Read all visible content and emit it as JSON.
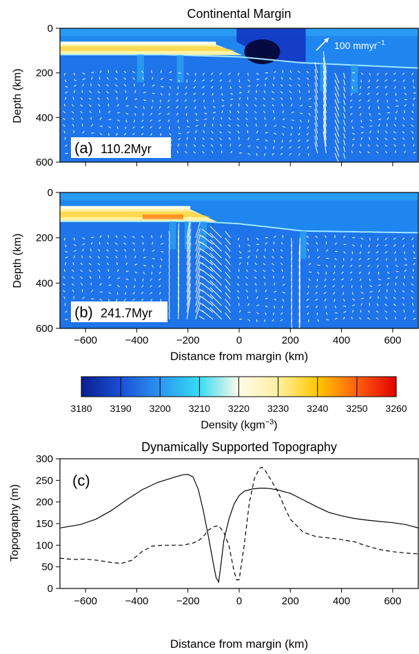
{
  "figure": {
    "top_title": "Continental Margin",
    "bottom_title": "Dynamically Supported Topography"
  },
  "chart_data": [
    {
      "type": "heatmap",
      "panel": "(a)",
      "time_label": "110.2Myr",
      "ylabel": "Depth (km)",
      "xlim": [
        -700,
        700
      ],
      "ylim": [
        600,
        0
      ],
      "y_ticks": [
        0,
        200,
        400,
        600
      ],
      "velocity_scale_label": "100 mmyr",
      "velocity_scale_sup": "−1",
      "lithosphere_base_km": [
        [
          -700,
          118
        ],
        [
          -300,
          118
        ],
        [
          0,
          128
        ],
        [
          250,
          155
        ],
        [
          700,
          178
        ]
      ],
      "craton": {
        "x_range": [
          -700,
          -10
        ],
        "top_km": 60,
        "base_km": 120
      },
      "low_density_anomaly": {
        "x_range": [
          0,
          250
        ],
        "depth_range": [
          0,
          155
        ]
      }
    },
    {
      "type": "heatmap",
      "panel": "(b)",
      "time_label": "241.7Myr",
      "ylabel": "Depth (km)",
      "xlabel": "Distance from margin (km)",
      "xlim": [
        -700,
        700
      ],
      "ylim": [
        600,
        0
      ],
      "x_ticks": [
        -600,
        -400,
        -200,
        0,
        200,
        400,
        600
      ],
      "y_ticks": [
        0,
        200,
        400,
        600
      ],
      "lithosphere_base_km": [
        [
          -700,
          128
        ],
        [
          -150,
          128
        ],
        [
          0,
          138
        ],
        [
          250,
          170
        ],
        [
          700,
          178
        ]
      ],
      "craton": {
        "x_range": [
          -700,
          -110
        ],
        "top_km": 60,
        "base_km": 128
      }
    },
    {
      "type": "colorbar",
      "label": "Density (kgm",
      "label_sup": "−3",
      "label_close": ")",
      "ticks": [
        3180,
        3190,
        3200,
        3210,
        3220,
        3230,
        3240,
        3250,
        3260
      ],
      "colors": [
        "#0c1e8e",
        "#1a4fd6",
        "#2c95f0",
        "#37dcf4",
        "#fffbe8",
        "#fff0a0",
        "#ffc800",
        "#ff6010",
        "#e00000"
      ]
    },
    {
      "type": "line",
      "panel": "(c)",
      "xlabel": "Distance from margin (km)",
      "ylabel": "Topography (m)",
      "xlim": [
        -700,
        700
      ],
      "ylim": [
        0,
        300
      ],
      "x_ticks": [
        -600,
        -400,
        -200,
        0,
        200,
        400,
        600
      ],
      "y_ticks": [
        0,
        50,
        100,
        150,
        200,
        250,
        300
      ],
      "series": [
        {
          "style": "solid",
          "x": [
            -700,
            -620,
            -560,
            -500,
            -440,
            -380,
            -320,
            -260,
            -220,
            -200,
            -180,
            -160,
            -140,
            -120,
            -100,
            -90,
            -80,
            -70,
            -60,
            -40,
            -20,
            0,
            20,
            50,
            80,
            100,
            120,
            150,
            200,
            250,
            300,
            350,
            400,
            450,
            500,
            550,
            600,
            650,
            700
          ],
          "y": [
            140,
            148,
            160,
            180,
            205,
            228,
            245,
            256,
            263,
            264,
            258,
            230,
            180,
            120,
            55,
            25,
            15,
            60,
            110,
            160,
            195,
            215,
            225,
            230,
            232,
            232,
            231,
            228,
            220,
            205,
            190,
            176,
            168,
            162,
            158,
            155,
            152,
            148,
            140
          ]
        },
        {
          "style": "dashed",
          "x": [
            -700,
            -650,
            -600,
            -550,
            -500,
            -460,
            -420,
            -380,
            -340,
            -300,
            -260,
            -220,
            -180,
            -160,
            -140,
            -120,
            -100,
            -80,
            -60,
            -40,
            -20,
            -10,
            0,
            20,
            40,
            60,
            80,
            90,
            100,
            120,
            150,
            180,
            200,
            250,
            300,
            350,
            400,
            450,
            500,
            550,
            600,
            650,
            700
          ],
          "y": [
            70,
            67,
            68,
            65,
            60,
            58,
            65,
            85,
            98,
            100,
            100,
            100,
            105,
            110,
            120,
            135,
            143,
            145,
            130,
            100,
            40,
            20,
            20,
            100,
            200,
            255,
            278,
            280,
            275,
            255,
            225,
            185,
            160,
            130,
            120,
            117,
            113,
            108,
            98,
            90,
            85,
            82,
            80
          ]
        }
      ]
    }
  ]
}
